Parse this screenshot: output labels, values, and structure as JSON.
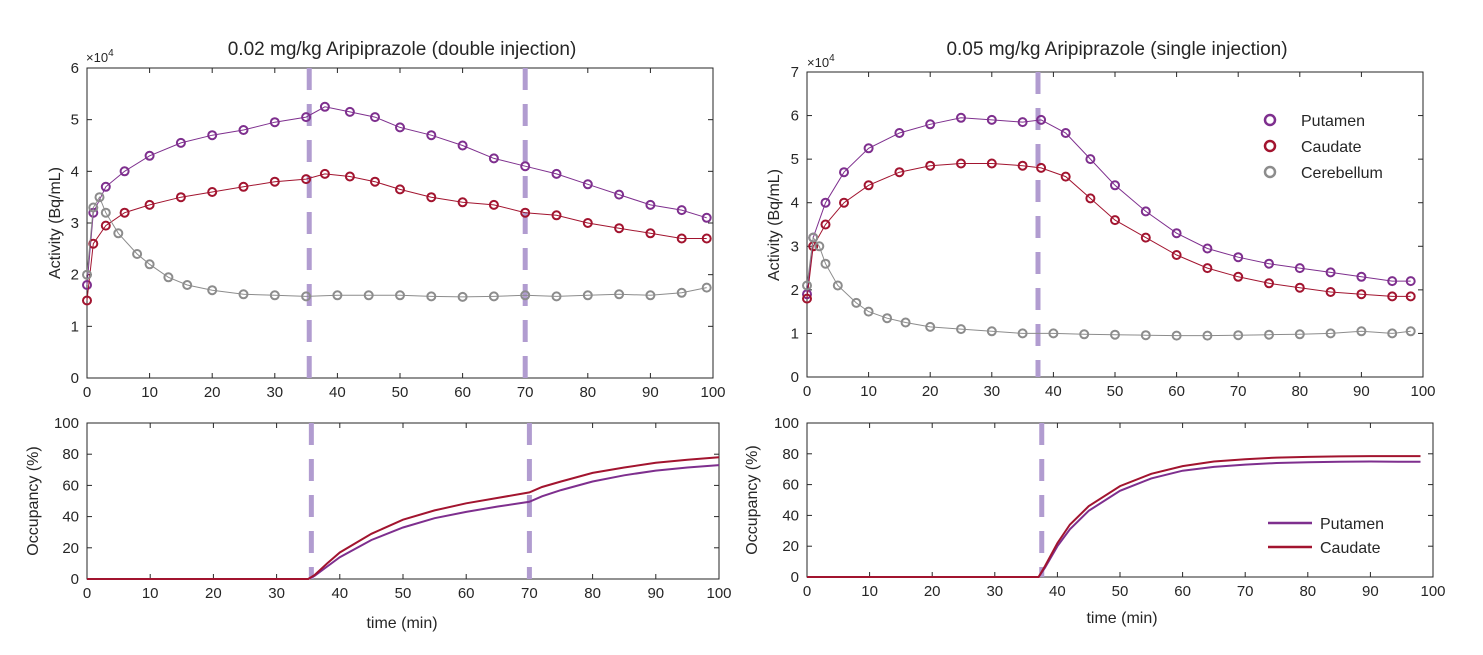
{
  "figure": {
    "colors": {
      "putamen": "#7E2F8E",
      "caudate": "#A2142F",
      "cerebellum": "#8C8C8C",
      "injection_line": "#B19CD0",
      "axis": "#262626"
    }
  },
  "chart_data": [
    {
      "id": "tac_left",
      "type": "scatter",
      "title": "0.02 mg/kg Aripiprazole (double injection)",
      "xlabel": "",
      "ylabel": "Activity (Bq/mL)",
      "xlim": [
        0,
        100
      ],
      "ylim": [
        0,
        6
      ],
      "y_multiplier": "×10",
      "y_exponent": "4",
      "xticks": [
        0,
        10,
        20,
        30,
        40,
        50,
        60,
        70,
        80,
        90,
        100
      ],
      "yticks": [
        0,
        1,
        2,
        3,
        4,
        5,
        6
      ],
      "injections": [
        35.5,
        70
      ],
      "series": [
        {
          "name": "Putamen",
          "color_key": "putamen",
          "x": [
            0,
            1,
            3,
            6,
            10,
            15,
            20,
            25,
            30,
            35,
            38,
            42,
            46,
            50,
            55,
            60,
            65,
            70,
            75,
            80,
            85,
            90,
            95,
            99
          ],
          "y": [
            1.8,
            3.2,
            3.7,
            4.0,
            4.3,
            4.55,
            4.7,
            4.8,
            4.95,
            5.05,
            5.25,
            5.15,
            5.05,
            4.85,
            4.7,
            4.5,
            4.25,
            4.1,
            3.95,
            3.75,
            3.55,
            3.35,
            3.25,
            3.1
          ]
        },
        {
          "name": "Caudate",
          "color_key": "caudate",
          "x": [
            0,
            1,
            3,
            6,
            10,
            15,
            20,
            25,
            30,
            35,
            38,
            42,
            46,
            50,
            55,
            60,
            65,
            70,
            75,
            80,
            85,
            90,
            95,
            99
          ],
          "y": [
            1.5,
            2.6,
            2.95,
            3.2,
            3.35,
            3.5,
            3.6,
            3.7,
            3.8,
            3.85,
            3.95,
            3.9,
            3.8,
            3.65,
            3.5,
            3.4,
            3.35,
            3.2,
            3.15,
            3.0,
            2.9,
            2.8,
            2.7,
            2.7
          ]
        },
        {
          "name": "Cerebellum",
          "color_key": "cerebellum",
          "x": [
            0,
            1,
            2,
            3,
            5,
            8,
            10,
            13,
            16,
            20,
            25,
            30,
            35,
            40,
            45,
            50,
            55,
            60,
            65,
            70,
            75,
            80,
            85,
            90,
            95,
            99
          ],
          "y": [
            2.0,
            3.3,
            3.5,
            3.2,
            2.8,
            2.4,
            2.2,
            1.95,
            1.8,
            1.7,
            1.62,
            1.6,
            1.58,
            1.6,
            1.6,
            1.6,
            1.58,
            1.57,
            1.58,
            1.6,
            1.58,
            1.6,
            1.62,
            1.6,
            1.65,
            1.75
          ]
        }
      ]
    },
    {
      "id": "tac_right",
      "type": "scatter",
      "title": "0.05 mg/kg Aripiprazole (single injection)",
      "xlabel": "",
      "ylabel": "Activity (Bq/mL)",
      "xlim": [
        0,
        100
      ],
      "ylim": [
        0,
        7
      ],
      "y_multiplier": "×10",
      "y_exponent": "4",
      "xticks": [
        0,
        10,
        20,
        30,
        40,
        50,
        60,
        70,
        80,
        90,
        100
      ],
      "yticks": [
        0,
        1,
        2,
        3,
        4,
        5,
        6,
        7
      ],
      "injections": [
        37.5
      ],
      "legend": {
        "position": "top-right",
        "marker": "circle",
        "entries": [
          "Putamen",
          "Caudate",
          "Cerebellum"
        ]
      },
      "series": [
        {
          "name": "Putamen",
          "color_key": "putamen",
          "x": [
            0,
            1,
            3,
            6,
            10,
            15,
            20,
            25,
            30,
            35,
            38,
            42,
            46,
            50,
            55,
            60,
            65,
            70,
            75,
            80,
            85,
            90,
            95,
            98
          ],
          "y": [
            1.9,
            3.2,
            4.0,
            4.7,
            5.25,
            5.6,
            5.8,
            5.95,
            5.9,
            5.85,
            5.9,
            5.6,
            5.0,
            4.4,
            3.8,
            3.3,
            2.95,
            2.75,
            2.6,
            2.5,
            2.4,
            2.3,
            2.2,
            2.2
          ]
        },
        {
          "name": "Caudate",
          "color_key": "caudate",
          "x": [
            0,
            1,
            3,
            6,
            10,
            15,
            20,
            25,
            30,
            35,
            38,
            42,
            46,
            50,
            55,
            60,
            65,
            70,
            75,
            80,
            85,
            90,
            95,
            98
          ],
          "y": [
            1.8,
            3.0,
            3.5,
            4.0,
            4.4,
            4.7,
            4.85,
            4.9,
            4.9,
            4.85,
            4.8,
            4.6,
            4.1,
            3.6,
            3.2,
            2.8,
            2.5,
            2.3,
            2.15,
            2.05,
            1.95,
            1.9,
            1.85,
            1.85
          ]
        },
        {
          "name": "Cerebellum",
          "color_key": "cerebellum",
          "x": [
            0,
            1,
            2,
            3,
            5,
            8,
            10,
            13,
            16,
            20,
            25,
            30,
            35,
            40,
            45,
            50,
            55,
            60,
            65,
            70,
            75,
            80,
            85,
            90,
            95,
            98
          ],
          "y": [
            2.1,
            3.2,
            3.0,
            2.6,
            2.1,
            1.7,
            1.5,
            1.35,
            1.25,
            1.15,
            1.1,
            1.05,
            1.0,
            1.0,
            0.98,
            0.97,
            0.96,
            0.95,
            0.95,
            0.96,
            0.97,
            0.98,
            1.0,
            1.05,
            1.0,
            1.05
          ]
        }
      ]
    },
    {
      "id": "occ_left",
      "type": "line",
      "title": "",
      "xlabel": "time (min)",
      "ylabel": "Occupancy (%)",
      "xlim": [
        0,
        100
      ],
      "ylim": [
        0,
        100
      ],
      "xticks": [
        0,
        10,
        20,
        30,
        40,
        50,
        60,
        70,
        80,
        90,
        100
      ],
      "yticks": [
        0,
        20,
        40,
        60,
        80,
        100
      ],
      "injections": [
        35.5,
        70
      ],
      "series": [
        {
          "name": "Putamen",
          "color_key": "putamen",
          "x": [
            0,
            35,
            36,
            38,
            40,
            45,
            50,
            55,
            60,
            65,
            70,
            72,
            75,
            80,
            85,
            90,
            95,
            100
          ],
          "y": [
            0,
            0,
            2,
            8,
            14,
            25,
            33,
            39,
            43,
            46.5,
            49.5,
            53,
            57,
            62.5,
            66.5,
            69.5,
            71.5,
            73
          ]
        },
        {
          "name": "Caudate",
          "color_key": "caudate",
          "x": [
            0,
            35,
            36,
            38,
            40,
            45,
            50,
            55,
            60,
            65,
            70,
            72,
            75,
            80,
            85,
            90,
            95,
            100
          ],
          "y": [
            0,
            0,
            2.5,
            10,
            17,
            29,
            38,
            44,
            48.5,
            52,
            55.5,
            59,
            62.5,
            68,
            71.5,
            74.5,
            76.5,
            78
          ]
        }
      ]
    },
    {
      "id": "occ_right",
      "type": "line",
      "title": "",
      "xlabel": "time (min)",
      "ylabel": "Occupancy (%)",
      "xlim": [
        0,
        100
      ],
      "ylim": [
        0,
        100
      ],
      "xticks": [
        0,
        10,
        20,
        30,
        40,
        50,
        60,
        70,
        80,
        90,
        100
      ],
      "yticks": [
        0,
        20,
        40,
        60,
        80,
        100
      ],
      "injections": [
        37.5
      ],
      "legend": {
        "position": "bottom-right",
        "marker": "line",
        "entries": [
          "Putamen",
          "Caudate"
        ]
      },
      "series": [
        {
          "name": "Putamen",
          "color_key": "putamen",
          "x": [
            0,
            37,
            38,
            40,
            42,
            45,
            50,
            55,
            60,
            65,
            70,
            75,
            80,
            85,
            90,
            95,
            98
          ],
          "y": [
            0,
            0,
            6,
            20,
            31,
            43,
            56,
            64,
            69,
            71.5,
            73,
            74,
            74.5,
            74.8,
            75,
            74.8,
            74.8
          ]
        },
        {
          "name": "Caudate",
          "color_key": "caudate",
          "x": [
            0,
            37,
            38,
            40,
            42,
            45,
            50,
            55,
            60,
            65,
            70,
            75,
            80,
            85,
            90,
            95,
            98
          ],
          "y": [
            0,
            0,
            7,
            22,
            34,
            46,
            59,
            67,
            72,
            75,
            76.5,
            77.5,
            78,
            78.3,
            78.5,
            78.5,
            78.5
          ]
        }
      ]
    }
  ]
}
